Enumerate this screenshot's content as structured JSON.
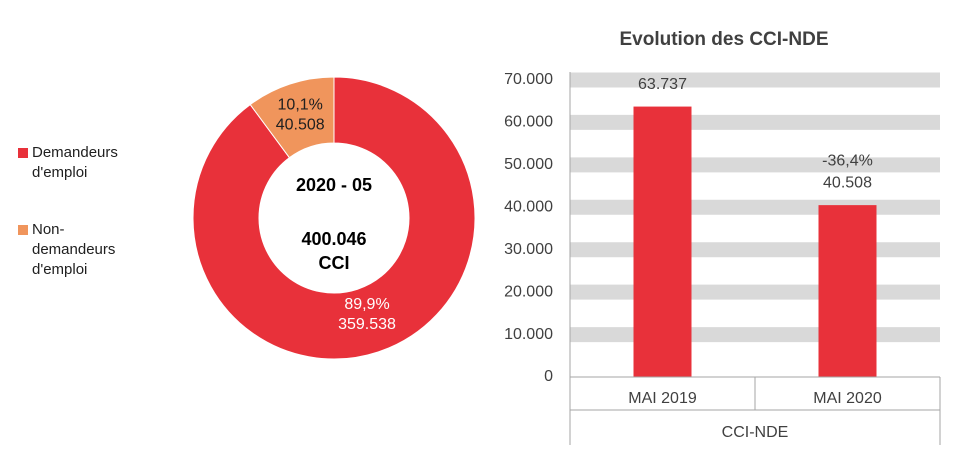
{
  "chart_data": [
    {
      "type": "donut",
      "categories": [
        "Demandeurs d'emploi",
        "Non-demandeurs d'emploi"
      ],
      "values": [
        359538,
        40508
      ],
      "value_labels": [
        "359.538",
        "40.508"
      ],
      "percentages": [
        89.9,
        10.1
      ],
      "percentage_labels": [
        "89,9%",
        "10,1%"
      ],
      "colors": [
        "#e8313a",
        "#f0955c"
      ],
      "center_title": "2020 - 05",
      "total": 400046,
      "total_label": "400.046",
      "total_unit": "CCI"
    },
    {
      "type": "bar",
      "title": "Evolution des CCI-NDE",
      "categories": [
        "MAI 2019",
        "MAI 2020"
      ],
      "values": [
        63737,
        40508
      ],
      "value_labels": [
        "63.737",
        "40.508"
      ],
      "annotation": "-36,4%",
      "x_group_label": "CCI-NDE",
      "color": "#e8313a",
      "ylim": [
        0,
        70000
      ],
      "yticks": [
        0,
        {
          "value": 10000,
          "label": "10.000"
        },
        {
          "value": 20000,
          "label": "20.000"
        },
        {
          "value": 30000,
          "label": "30.000"
        },
        {
          "value": 40000,
          "label": "40.000"
        },
        {
          "value": 50000,
          "label": "50.000"
        },
        {
          "value": 60000,
          "label": "60.000"
        },
        {
          "value": 70000,
          "label": "70.000"
        }
      ],
      "grid": true
    }
  ]
}
